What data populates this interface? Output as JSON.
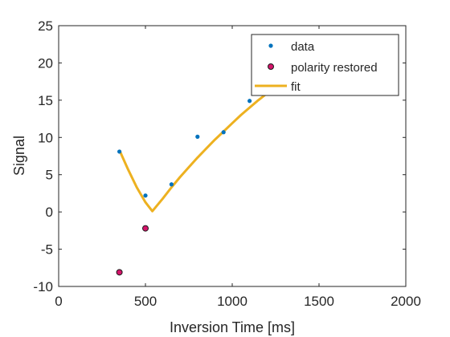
{
  "chart_data": {
    "type": "scatter",
    "title": "",
    "xlabel": "Inversion Time [ms]",
    "ylabel": "Signal",
    "xlim": [
      0,
      2000
    ],
    "ylim": [
      -10,
      25
    ],
    "xticks": [
      0,
      500,
      1000,
      1500,
      2000
    ],
    "yticks": [
      -10,
      -5,
      0,
      5,
      10,
      15,
      20,
      25
    ],
    "xtick_labels": [
      "0",
      "500",
      "1000",
      "1500",
      "2000"
    ],
    "ytick_labels": [
      "-10",
      "-5",
      "0",
      "5",
      "10",
      "15",
      "20",
      "25"
    ],
    "grid": false,
    "legend_position": "top-right",
    "series": [
      {
        "name": "data",
        "kind": "scatter",
        "color": "#0072BD",
        "x": [
          350,
          500,
          650,
          800,
          950,
          1100
        ],
        "y": [
          8.1,
          2.2,
          3.7,
          10.1,
          10.7,
          14.9
        ]
      },
      {
        "name": "polarity restored",
        "kind": "scatter",
        "color": "#D4146A",
        "edge_color": "#1a1a1a",
        "x": [
          350,
          500
        ],
        "y": [
          -8.1,
          -2.2
        ]
      },
      {
        "name": "fit",
        "kind": "line",
        "color": "#EDB120",
        "x": [
          350,
          400,
          450,
          500,
          540,
          600,
          650,
          700,
          750,
          800,
          850,
          900,
          950,
          1000,
          1050,
          1100,
          1150,
          1200,
          1250
        ],
        "y": [
          8.3,
          5.7,
          3.3,
          1.3,
          0.1,
          1.8,
          3.3,
          4.7,
          6.0,
          7.3,
          8.5,
          9.7,
          10.8,
          11.9,
          13.0,
          14.0,
          15.0,
          15.9,
          16.8
        ]
      }
    ]
  }
}
